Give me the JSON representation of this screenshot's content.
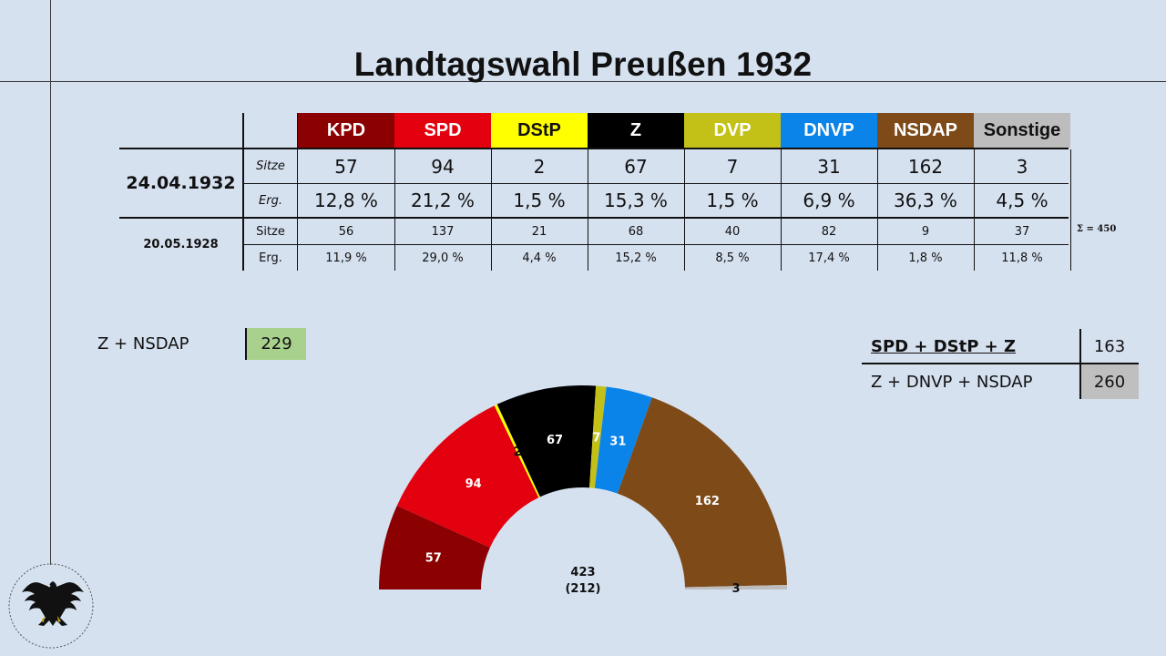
{
  "title": "Landtagswahl Preußen 1932",
  "parties": [
    {
      "name": "KPD",
      "color": "#8b0000",
      "text_color": "#ffffff",
      "seats_1932": "57",
      "share_1932": "12,8 %",
      "seats_1928": "56",
      "share_1928": "11,9 %"
    },
    {
      "name": "SPD",
      "color": "#e3000f",
      "text_color": "#ffffff",
      "seats_1932": "94",
      "share_1932": "21,2 %",
      "seats_1928": "137",
      "share_1928": "29,0 %"
    },
    {
      "name": "DStP",
      "color": "#ffff00",
      "text_color": "#111111",
      "seats_1932": "2",
      "share_1932": "1,5 %",
      "seats_1928": "21",
      "share_1928": "4,4 %"
    },
    {
      "name": "Z",
      "color": "#000000",
      "text_color": "#ffffff",
      "seats_1932": "67",
      "share_1932": "15,3 %",
      "seats_1928": "68",
      "share_1928": "15,2 %"
    },
    {
      "name": "DVP",
      "color": "#c3c118",
      "text_color": "#ffffff",
      "seats_1932": "7",
      "share_1932": "1,5 %",
      "seats_1928": "40",
      "share_1928": "8,5 %"
    },
    {
      "name": "DNVP",
      "color": "#0a84e8",
      "text_color": "#ffffff",
      "seats_1932": "31",
      "share_1932": "6,9 %",
      "seats_1928": "82",
      "share_1928": "17,4 %"
    },
    {
      "name": "NSDAP",
      "color": "#7d4a18",
      "text_color": "#ffffff",
      "seats_1932": "162",
      "share_1932": "36,3 %",
      "seats_1928": "9",
      "share_1928": "1,8 %"
    },
    {
      "name": "Sonstige",
      "color": "#bdbdbd",
      "text_color": "#111111",
      "seats_1932": "3",
      "share_1932": "4,5 %",
      "seats_1928": "37",
      "share_1928": "11,8 %"
    }
  ],
  "table": {
    "date_1932": "24.04.1932",
    "date_1928": "20.05.1928",
    "label_seats_1932": "Sitze",
    "label_share_1932": "Erg.",
    "label_seats_1928": "Sitze",
    "label_share_1928": "Erg.",
    "sum_1928": "Σ = 450"
  },
  "coalitions": {
    "left": {
      "label": "Z + NSDAP",
      "value": "229",
      "box_color": "#a9d18e"
    },
    "right": [
      {
        "label": "SPD + DStP + Z",
        "value": "163"
      },
      {
        "label": "Z + DNVP + NSDAP",
        "value": "260",
        "box_color": "#bfbfbf"
      }
    ]
  },
  "chart_data": {
    "type": "pie",
    "subtype": "hemicycle",
    "categories": [
      "KPD",
      "SPD",
      "DStP",
      "Z",
      "DVP",
      "DNVP",
      "NSDAP",
      "Sonstige"
    ],
    "values": [
      57,
      94,
      2,
      67,
      7,
      31,
      162,
      3
    ],
    "colors": [
      "#8b0000",
      "#e3000f",
      "#ffff00",
      "#000000",
      "#c3c118",
      "#0a84e8",
      "#7d4a18",
      "#bdbdbd"
    ],
    "labels": [
      "57",
      "94",
      "2",
      "67",
      "7",
      "31",
      "162",
      "3"
    ],
    "total": "423",
    "majority": "(212)"
  },
  "icons": {
    "emblem": "prussian-eagle-icon"
  }
}
